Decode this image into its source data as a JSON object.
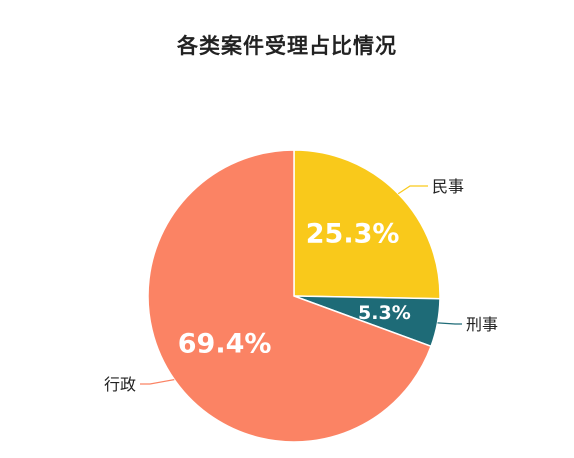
{
  "chart_data": {
    "type": "pie",
    "title": "各类案件受理占比情况",
    "slices": [
      {
        "label": "民事",
        "value": 25.3,
        "value_label": "25.3%",
        "color": "#F9C91B"
      },
      {
        "label": "刑事",
        "value": 5.3,
        "value_label": "5.3%",
        "color": "#1E6B77"
      },
      {
        "label": "行政",
        "value": 69.4,
        "value_label": "69.4%",
        "color": "#FB8364"
      }
    ],
    "start_angle": "top",
    "direction": "clockwise",
    "legend": "none",
    "labels": "outside-with-leader-lines"
  }
}
